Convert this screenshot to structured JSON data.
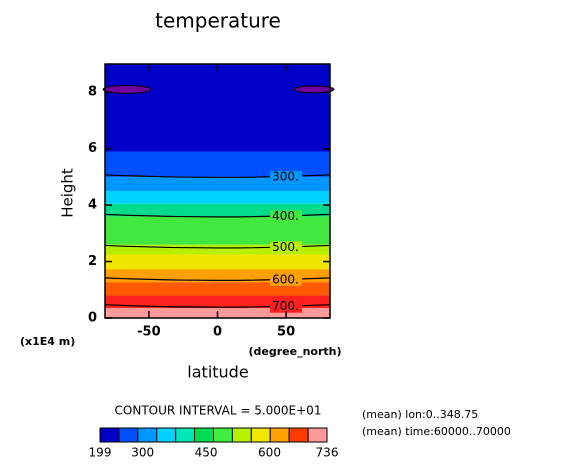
{
  "chart_data": {
    "type": "contour",
    "title": "temperature",
    "ylabel": "Height",
    "yunit": "(x1E4 m)",
    "xlabel": "latitude",
    "xunit": "(degree_north)",
    "xlim": [
      -82,
      82
    ],
    "xticks": [
      -50,
      0,
      50
    ],
    "ylim": [
      0,
      9
    ],
    "yticks": [
      0,
      2,
      4,
      6,
      8
    ],
    "bands": {
      "colors": [
        "#ff9a9a",
        "#ff2020",
        "#ff5a00",
        "#ffa000",
        "#f0e600",
        "#b4f000",
        "#40e840",
        "#00dc8c",
        "#00d2ff",
        "#0096ff",
        "#0050ff",
        "#0000c8"
      ],
      "tops": [
        0.35,
        0.8,
        1.27,
        1.73,
        2.25,
        2.6,
        3.6,
        4.05,
        4.5,
        5.0,
        5.9,
        9
      ]
    },
    "contours": {
      "values": [
        300,
        400,
        500,
        600,
        700
      ],
      "value_labels": [
        "300.",
        "400.",
        "500.",
        "600.",
        "700."
      ],
      "heights": [
        5.0,
        3.6,
        2.5,
        1.35,
        0.4
      ]
    },
    "contour_interval": "CONTOUR INTERVAL = 5.000E+01",
    "colorbar": {
      "lim": [
        199,
        736
      ],
      "ticks": [
        199,
        300,
        450,
        600,
        736
      ],
      "colors": [
        "#0000c8",
        "#0050ff",
        "#0096ff",
        "#00d2ff",
        "#00e6b4",
        "#00dc50",
        "#40f040",
        "#b4f000",
        "#f0e600",
        "#ffa000",
        "#ff3c00",
        "#ff9a9a"
      ]
    },
    "annotations": [
      "(mean) lon:0..348.75",
      "(mean) time:60000..70000"
    ]
  }
}
